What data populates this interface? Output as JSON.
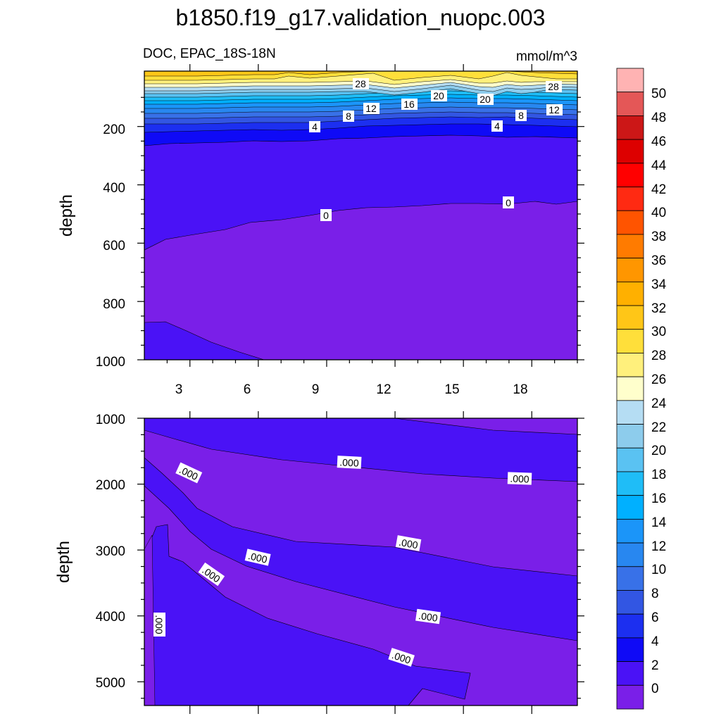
{
  "chart_data": {
    "type": "contour",
    "title": "b1850.f19_g17.validation_nuopc.003",
    "variable_label": "DOC, EPAC_18S-18N",
    "units": "mmol/m^3",
    "ylabel": "depth",
    "upper_panel": {
      "ylim": [
        1000,
        10
      ],
      "yticks": [
        200,
        400,
        600,
        800,
        1000
      ],
      "yticklabels": [
        "200",
        "400",
        "600",
        "800",
        "1000"
      ],
      "xticks": [
        3,
        6,
        9,
        12,
        15,
        18
      ],
      "xticklabels": [
        "3",
        "6",
        "9",
        "12",
        "15",
        "18"
      ],
      "contour_labels": [
        "28",
        "20",
        "20",
        "28",
        "16",
        "12",
        "12",
        "8",
        "8",
        "4",
        "4",
        "0",
        "0"
      ]
    },
    "lower_panel": {
      "ylim": [
        5400,
        1000
      ],
      "yticks": [
        1000,
        2000,
        3000,
        4000,
        5000
      ],
      "yticklabels": [
        "1000",
        "2000",
        "3000",
        "4000",
        "5000"
      ],
      "contour_labels": [
        ".000",
        ".000",
        ".000",
        ".000",
        ".000",
        ".000",
        ".000",
        ".000",
        ".000"
      ]
    },
    "colorbar": {
      "levels": [
        "50",
        "48",
        "46",
        "44",
        "42",
        "40",
        "38",
        "36",
        "34",
        "32",
        "30",
        "28",
        "26",
        "24",
        "22",
        "20",
        "18",
        "16",
        "14",
        "12",
        "10",
        "8",
        "6",
        "4",
        "2",
        "0"
      ],
      "colors": [
        "#ffb3b3",
        "#e45757",
        "#cc1717",
        "#dd0000",
        "#ff0000",
        "#ff2a12",
        "#ff5400",
        "#ff7b00",
        "#ff9600",
        "#ffb000",
        "#ffc617",
        "#ffdf3a",
        "#fff07c",
        "#ffffcc",
        "#b5ddf3",
        "#8dccec",
        "#5ac2f2",
        "#1fbdf7",
        "#00b0ff",
        "#1b95f9",
        "#2887f0",
        "#3871e8",
        "#3256e3",
        "#1c2ff0",
        "#0f0af6",
        "#4a12f6",
        "#7a1fe8"
      ]
    }
  }
}
